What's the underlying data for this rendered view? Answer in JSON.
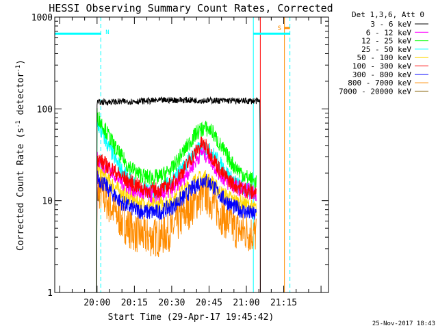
{
  "chart_data": {
    "type": "line",
    "title": "HESSI Observing Summary Count Rates, Corrected",
    "xlabel": "Start Time (29-Apr-17 19:45:42)",
    "ylabel_main": "Corrected Count Rate (s",
    "ylabel_sup1": "-1",
    "ylabel_mid": " detector",
    "ylabel_sup2": "-1",
    "ylabel_end": ")",
    "yscale": "log",
    "ylim": [
      1,
      1000
    ],
    "xlim_minutes": [
      -17.0,
      93.0
    ],
    "x_ticks": [
      {
        "t": 0,
        "label": "20:00"
      },
      {
        "t": 15,
        "label": "20:15"
      },
      {
        "t": 30,
        "label": "20:30"
      },
      {
        "t": 45,
        "label": "20:45"
      },
      {
        "t": 60,
        "label": "21:00"
      },
      {
        "t": 75,
        "label": "21:15"
      }
    ],
    "y_ticks": [
      {
        "v": 1,
        "label": "1"
      },
      {
        "v": 10,
        "label": "10"
      },
      {
        "v": 100,
        "label": "100"
      },
      {
        "v": 1000,
        "label": "1000"
      }
    ],
    "legend_header": "Det 1,3,6, Att 0",
    "legend_placement": "right",
    "series": [
      {
        "name": "3 - 6 keV",
        "color": "#000000",
        "points": [
          [
            -0.2,
            1
          ],
          [
            0,
            118
          ],
          [
            10,
            120
          ],
          [
            20,
            122
          ],
          [
            30,
            125
          ],
          [
            40,
            124
          ],
          [
            50,
            123
          ],
          [
            60,
            122
          ],
          [
            64,
            122
          ],
          [
            65.5,
            120
          ],
          [
            65.6,
            1
          ]
        ]
      },
      {
        "name": "6 - 12 keV",
        "color": "#ff00ff",
        "points": [
          [
            -0.2,
            1
          ],
          [
            0,
            28
          ],
          [
            5,
            22
          ],
          [
            10,
            16
          ],
          [
            15,
            13
          ],
          [
            20,
            11.5
          ],
          [
            25,
            11.5
          ],
          [
            30,
            13
          ],
          [
            35,
            18
          ],
          [
            40,
            28
          ],
          [
            42,
            34
          ],
          [
            45,
            30
          ],
          [
            48,
            22
          ],
          [
            52,
            16
          ],
          [
            56,
            14
          ],
          [
            60,
            13
          ],
          [
            64,
            12
          ]
        ]
      },
      {
        "name": "12 - 25 keV",
        "color": "#00ff00",
        "points": [
          [
            -0.2,
            1
          ],
          [
            0,
            85
          ],
          [
            4,
            55
          ],
          [
            8,
            35
          ],
          [
            12,
            25
          ],
          [
            16,
            20
          ],
          [
            20,
            18
          ],
          [
            25,
            18
          ],
          [
            30,
            22
          ],
          [
            35,
            35
          ],
          [
            40,
            55
          ],
          [
            43,
            62
          ],
          [
            46,
            58
          ],
          [
            50,
            38
          ],
          [
            55,
            24
          ],
          [
            60,
            18
          ],
          [
            64,
            16
          ]
        ]
      },
      {
        "name": "25 - 50 keV",
        "color": "#00ffff",
        "points": [
          [
            -0.2,
            1
          ],
          [
            0,
            70
          ],
          [
            4,
            42
          ],
          [
            8,
            26
          ],
          [
            12,
            18
          ],
          [
            16,
            14
          ],
          [
            20,
            13
          ],
          [
            25,
            13
          ],
          [
            30,
            16
          ],
          [
            35,
            24
          ],
          [
            40,
            35
          ],
          [
            43,
            38
          ],
          [
            46,
            34
          ],
          [
            50,
            24
          ],
          [
            55,
            16
          ],
          [
            60,
            13
          ],
          [
            64,
            12
          ]
        ]
      },
      {
        "name": "50 - 100 keV",
        "color": "#ffd700",
        "points": [
          [
            -0.2,
            1
          ],
          [
            0,
            22
          ],
          [
            5,
            16
          ],
          [
            10,
            12
          ],
          [
            15,
            10
          ],
          [
            20,
            9
          ],
          [
            25,
            9
          ],
          [
            30,
            10
          ],
          [
            35,
            13
          ],
          [
            40,
            17
          ],
          [
            43,
            18
          ],
          [
            46,
            16
          ],
          [
            50,
            12
          ],
          [
            55,
            10
          ],
          [
            60,
            9
          ],
          [
            64,
            8
          ]
        ]
      },
      {
        "name": "100 - 300 keV",
        "color": "#ff0000",
        "points": [
          [
            -0.2,
            1
          ],
          [
            0,
            29
          ],
          [
            5,
            23
          ],
          [
            10,
            18
          ],
          [
            15,
            15
          ],
          [
            20,
            13
          ],
          [
            25,
            13
          ],
          [
            30,
            15
          ],
          [
            35,
            22
          ],
          [
            40,
            35
          ],
          [
            42,
            42
          ],
          [
            44,
            38
          ],
          [
            47,
            28
          ],
          [
            50,
            20
          ],
          [
            55,
            15
          ],
          [
            60,
            13
          ],
          [
            64,
            12
          ]
        ]
      },
      {
        "name": "300 - 800 keV",
        "color": "#0000ff",
        "points": [
          [
            -0.2,
            1
          ],
          [
            0,
            18
          ],
          [
            5,
            13
          ],
          [
            10,
            9.5
          ],
          [
            15,
            8
          ],
          [
            20,
            7.5
          ],
          [
            25,
            7.5
          ],
          [
            30,
            8.5
          ],
          [
            35,
            11
          ],
          [
            40,
            15
          ],
          [
            43,
            17
          ],
          [
            46,
            15
          ],
          [
            50,
            11
          ],
          [
            55,
            8.5
          ],
          [
            60,
            7.5
          ],
          [
            64,
            7
          ]
        ]
      },
      {
        "name": "800 - 7000 keV",
        "color": "#ff8c00",
        "points": [
          [
            -0.2,
            1
          ],
          [
            0,
            14
          ],
          [
            5,
            9
          ],
          [
            10,
            6
          ],
          [
            15,
            4.5
          ],
          [
            20,
            4
          ],
          [
            25,
            4
          ],
          [
            30,
            4.8
          ],
          [
            35,
            7
          ],
          [
            40,
            10
          ],
          [
            43,
            12
          ],
          [
            46,
            10
          ],
          [
            50,
            7
          ],
          [
            55,
            5
          ],
          [
            60,
            4.5
          ],
          [
            64,
            4.3
          ]
        ]
      },
      {
        "name": "7000 - 20000 keV",
        "color": "#8b6914",
        "points": [
          [
            -0.2,
            1
          ],
          [
            0,
            12
          ],
          [
            1,
            10
          ]
        ]
      }
    ],
    "flags": [
      {
        "label": "N",
        "color": "#00ffff",
        "bar": [
          -17,
          1.5
        ],
        "level": 660,
        "dashed_at": 1.5
      },
      {
        "label": "S",
        "color": "#ff8c00",
        "bar": [
          75.3,
          77.5
        ],
        "level": 760,
        "dashed_at": null
      },
      {
        "label": "",
        "color": "#00ffff",
        "bar": [
          62.8,
          77.5
        ],
        "level": 660,
        "dashed_at": 77.5
      }
    ],
    "vlines": [
      {
        "t": -17,
        "color": "#00ffff"
      },
      {
        "t": 62.8,
        "color": "#00ffff"
      },
      {
        "t": 75.3,
        "color": "#ff8c00"
      },
      {
        "t": 65.6,
        "color": "#ff0000"
      }
    ],
    "footer": "25-Nov-2017 18:43"
  }
}
